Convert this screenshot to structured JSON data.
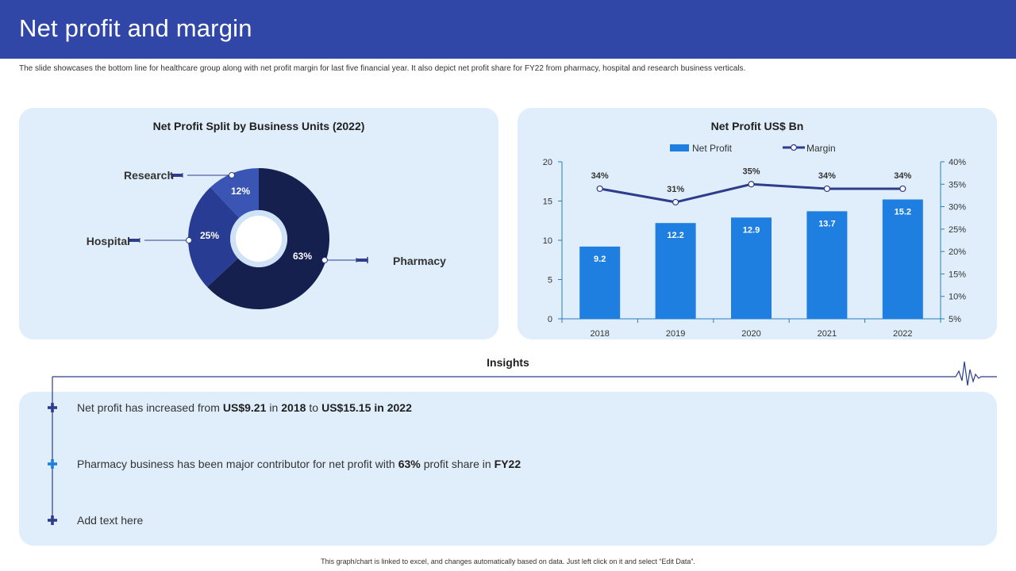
{
  "header": {
    "title": "Net profit and margin"
  },
  "subtitle": "The slide showcases the bottom line for healthcare group along with net profit margin for last five financial year. It also depict net profit share for FY22 from pharmacy, hospital and research business verticals.",
  "colors": {
    "header_bg": "#3147a8",
    "panel_bg": "#dfeefa",
    "bar": "#1f7fe0",
    "line": "#2e3c8c",
    "pharmacy": "#16204f",
    "hospital": "#283c94",
    "research": "#3a55b3"
  },
  "chart_data": [
    {
      "type": "pie",
      "title": "Net Profit Split by Business Units (2022)",
      "labels": [
        "Pharmacy",
        "Hospital",
        "Research"
      ],
      "values": [
        63,
        25,
        12
      ],
      "value_labels": [
        "63%",
        "25%",
        "12%"
      ]
    },
    {
      "type": "bar",
      "title": "Net Profit US$ Bn",
      "categories": [
        "2018",
        "2019",
        "2020",
        "2021",
        "2022"
      ],
      "series": [
        {
          "name": "Net Profit",
          "type": "bar",
          "axis": "left",
          "values": [
            9.2,
            12.2,
            12.9,
            13.7,
            15.2
          ],
          "value_labels": [
            "9.2",
            "12.2",
            "12.9",
            "13.7",
            "15.2"
          ]
        },
        {
          "name": "Margin",
          "type": "line",
          "axis": "right",
          "values": [
            34,
            31,
            35,
            34,
            34
          ],
          "value_labels": [
            "34%",
            "31%",
            "35%",
            "34%",
            "34%"
          ]
        }
      ],
      "ylim": [
        0,
        20
      ],
      "yticks": [
        "0",
        "5",
        "10",
        "15",
        "20"
      ],
      "y2lim": [
        5,
        40
      ],
      "y2ticks": [
        "5%",
        "10%",
        "15%",
        "20%",
        "25%",
        "30%",
        "35%",
        "40%"
      ],
      "legend_position": "top"
    }
  ],
  "insights": {
    "title": "Insights",
    "items": [
      {
        "parts": [
          [
            "Net profit",
            false
          ],
          [
            "has increased from",
            false
          ],
          [
            "US$9.21",
            true
          ],
          [
            "in",
            false
          ],
          [
            "2018",
            true
          ],
          [
            "to",
            false
          ],
          [
            "US$15.15",
            true
          ],
          [
            "in 2022",
            true
          ]
        ]
      },
      {
        "parts": [
          [
            "Pharmacy",
            false
          ],
          [
            "business",
            false
          ],
          [
            "has been",
            false
          ],
          [
            "major",
            false
          ],
          [
            "contributor",
            false
          ],
          [
            "for net profit",
            false
          ],
          [
            "with",
            false
          ],
          [
            "63%",
            true
          ],
          [
            "profit",
            false
          ],
          [
            "share in",
            false
          ],
          [
            "FY22",
            true
          ]
        ]
      },
      {
        "parts": [
          [
            "Add text here",
            false
          ]
        ]
      }
    ]
  },
  "footer": "This graph/chart is linked to excel, and changes automatically based on data. Just left click on it and select “Edit Data”."
}
